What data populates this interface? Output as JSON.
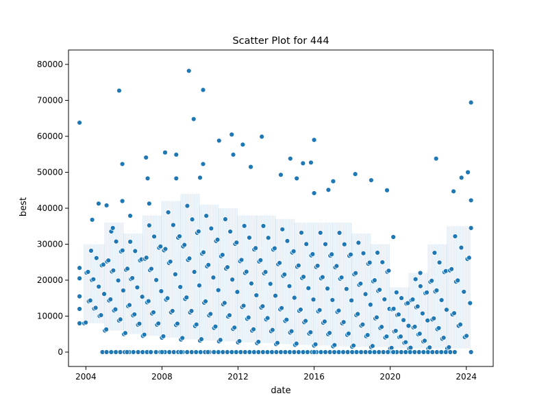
{
  "chart_data": {
    "type": "scatter",
    "title": "Scatter Plot for 444",
    "xlabel": "date",
    "ylabel": "best",
    "x_scale": "date",
    "xlim": [
      "2003-02-01",
      "2025-06-01"
    ],
    "ylim": [
      -4000,
      84000
    ],
    "x_ticks": [
      {
        "value": "2004-01-01",
        "label": "2004"
      },
      {
        "value": "2008-01-01",
        "label": "2008"
      },
      {
        "value": "2012-01-01",
        "label": "2012"
      },
      {
        "value": "2016-01-01",
        "label": "2016"
      },
      {
        "value": "2020-01-01",
        "label": "2020"
      },
      {
        "value": "2024-01-01",
        "label": "2024"
      }
    ],
    "y_ticks": [
      0,
      10000,
      20000,
      30000,
      40000,
      50000,
      60000,
      70000,
      80000
    ],
    "y_tick_labels": [
      "0",
      "10000",
      "20000",
      "30000",
      "40000",
      "50000",
      "60000",
      "70000",
      "80000"
    ],
    "grid": false,
    "marker_color": "#1f77b4",
    "marker_edge_color": "#ffffff",
    "series": [
      {
        "points": [
          {
            "x": "2003-09-01",
            "y": 63800
          },
          {
            "x": "2003-09-01",
            "y": 23400
          },
          {
            "x": "2003-09-01",
            "y": 20500
          },
          {
            "x": "2003-09-01",
            "y": 15500
          },
          {
            "x": "2003-09-01",
            "y": 12000
          },
          {
            "x": "2003-09-01",
            "y": 8000
          },
          {
            "x": "2004-05-01",
            "y": 36800
          },
          {
            "x": "2004-09-01",
            "y": 41300
          },
          {
            "x": "2005-02-01",
            "y": 40800
          },
          {
            "x": "2005-06-01",
            "y": 34500
          },
          {
            "x": "2005-10-01",
            "y": 72700
          },
          {
            "x": "2005-12-01",
            "y": 52300
          },
          {
            "x": "2005-12-01",
            "y": 42000
          },
          {
            "x": "2006-05-01",
            "y": 37900
          },
          {
            "x": "2007-03-01",
            "y": 54100
          },
          {
            "x": "2007-04-01",
            "y": 48300
          },
          {
            "x": "2007-05-01",
            "y": 41300
          },
          {
            "x": "2008-03-01",
            "y": 55500
          },
          {
            "x": "2008-10-01",
            "y": 54900
          },
          {
            "x": "2008-10-01",
            "y": 48300
          },
          {
            "x": "2009-06-01",
            "y": 78200
          },
          {
            "x": "2009-09-01",
            "y": 64800
          },
          {
            "x": "2010-03-01",
            "y": 72900
          },
          {
            "x": "2010-03-01",
            "y": 52300
          },
          {
            "x": "2010-01-01",
            "y": 48500
          },
          {
            "x": "2011-01-01",
            "y": 58800
          },
          {
            "x": "2011-09-01",
            "y": 60500
          },
          {
            "x": "2011-10-01",
            "y": 54900
          },
          {
            "x": "2012-04-01",
            "y": 57700
          },
          {
            "x": "2012-09-01",
            "y": 51500
          },
          {
            "x": "2013-04-01",
            "y": 59900
          },
          {
            "x": "2014-04-01",
            "y": 49300
          },
          {
            "x": "2014-10-01",
            "y": 53800
          },
          {
            "x": "2015-02-01",
            "y": 48300
          },
          {
            "x": "2015-06-01",
            "y": 52500
          },
          {
            "x": "2015-11-01",
            "y": 52700
          },
          {
            "x": "2016-01-01",
            "y": 59000
          },
          {
            "x": "2016-01-01",
            "y": 44200
          },
          {
            "x": "2016-10-01",
            "y": 45100
          },
          {
            "x": "2017-01-01",
            "y": 47500
          },
          {
            "x": "2018-03-01",
            "y": 49500
          },
          {
            "x": "2019-01-01",
            "y": 47800
          },
          {
            "x": "2019-11-01",
            "y": 45000
          },
          {
            "x": "2020-03-01",
            "y": 32000
          },
          {
            "x": "2021-08-01",
            "y": 22000
          },
          {
            "x": "2022-06-01",
            "y": 53800
          },
          {
            "x": "2023-05-01",
            "y": 44700
          },
          {
            "x": "2023-10-01",
            "y": 48500
          },
          {
            "x": "2024-02-01",
            "y": 50000
          },
          {
            "x": "2024-04-01",
            "y": 69400
          },
          {
            "x": "2024-04-01",
            "y": 42200
          },
          {
            "x": "2024-04-01",
            "y": 34500
          },
          {
            "x": "2005-02-01",
            "y": 0
          },
          {
            "x": "2005-05-01",
            "y": 0
          },
          {
            "x": "2006-03-01",
            "y": 0
          },
          {
            "x": "2006-07-01",
            "y": 0
          },
          {
            "x": "2007-06-01",
            "y": 0
          },
          {
            "x": "2008-01-01",
            "y": 0
          },
          {
            "x": "2009-01-01",
            "y": 0
          },
          {
            "x": "2010-06-01",
            "y": 0
          },
          {
            "x": "2016-01-01",
            "y": 0
          },
          {
            "x": "2020-03-01",
            "y": 0
          },
          {
            "x": "2024-04-01",
            "y": 0
          }
        ]
      }
    ],
    "dense_band_segments": [
      {
        "from": "2003-12-01",
        "to": "2005-01-01",
        "low": 8000,
        "high": 30000
      },
      {
        "from": "2005-01-01",
        "to": "2006-01-01",
        "low": 6000,
        "high": 36000
      },
      {
        "from": "2006-01-01",
        "to": "2007-01-01",
        "low": 5000,
        "high": 33000
      },
      {
        "from": "2007-01-01",
        "to": "2008-01-01",
        "low": 4500,
        "high": 38000
      },
      {
        "from": "2008-01-01",
        "to": "2009-01-01",
        "low": 4000,
        "high": 42000
      },
      {
        "from": "2009-01-01",
        "to": "2010-01-01",
        "low": 3500,
        "high": 44000
      },
      {
        "from": "2010-01-01",
        "to": "2011-01-01",
        "low": 3200,
        "high": 41000
      },
      {
        "from": "2011-01-01",
        "to": "2012-01-01",
        "low": 3000,
        "high": 40000
      },
      {
        "from": "2012-01-01",
        "to": "2013-01-01",
        "low": 2700,
        "high": 38000
      },
      {
        "from": "2013-01-01",
        "to": "2014-01-01",
        "low": 2500,
        "high": 38000
      },
      {
        "from": "2014-01-01",
        "to": "2015-01-01",
        "low": 2200,
        "high": 37000
      },
      {
        "from": "2015-01-01",
        "to": "2016-01-01",
        "low": 2000,
        "high": 36000
      },
      {
        "from": "2016-01-01",
        "to": "2017-01-01",
        "low": 1800,
        "high": 36000
      },
      {
        "from": "2017-01-01",
        "to": "2018-01-01",
        "low": 1600,
        "high": 36000
      },
      {
        "from": "2018-01-01",
        "to": "2019-01-01",
        "low": 1500,
        "high": 33000
      },
      {
        "from": "2019-01-01",
        "to": "2020-01-01",
        "low": 1400,
        "high": 30000
      },
      {
        "from": "2020-01-01",
        "to": "2021-01-01",
        "low": 1000,
        "high": 18000
      },
      {
        "from": "2021-01-01",
        "to": "2022-01-01",
        "low": 1000,
        "high": 22000
      },
      {
        "from": "2022-01-01",
        "to": "2023-01-01",
        "low": 1000,
        "high": 30000
      },
      {
        "from": "2023-01-01",
        "to": "2024-04-01",
        "low": 1000,
        "high": 35000
      }
    ]
  }
}
